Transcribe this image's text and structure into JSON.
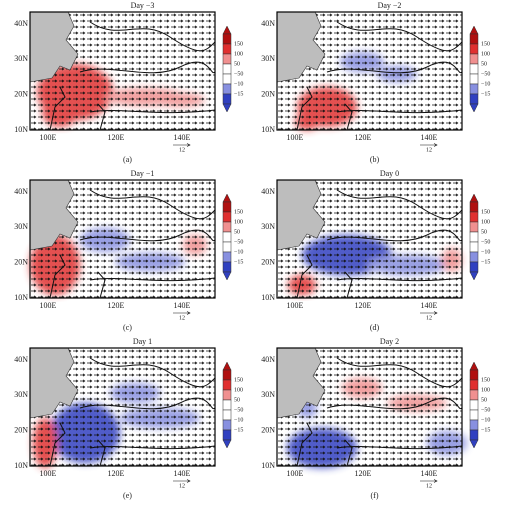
{
  "panels": [
    {
      "title": "Day −3",
      "letter": "(a)"
    },
    {
      "title": "Day −2",
      "letter": "(b)"
    },
    {
      "title": "Day −1",
      "letter": "(c)"
    },
    {
      "title": "Day 0",
      "letter": "(d)"
    },
    {
      "title": "Day 1",
      "letter": "(e)"
    },
    {
      "title": "Day 2",
      "letter": "(f)"
    }
  ],
  "lat_labels": [
    "40N",
    "30N",
    "20N",
    "10N"
  ],
  "lon_labels": [
    "100E",
    "120E",
    "140E"
  ],
  "colorbar_labels": [
    "150",
    "100",
    "50",
    "−50",
    "−10",
    "−15"
  ],
  "ref_vector": "12"
}
